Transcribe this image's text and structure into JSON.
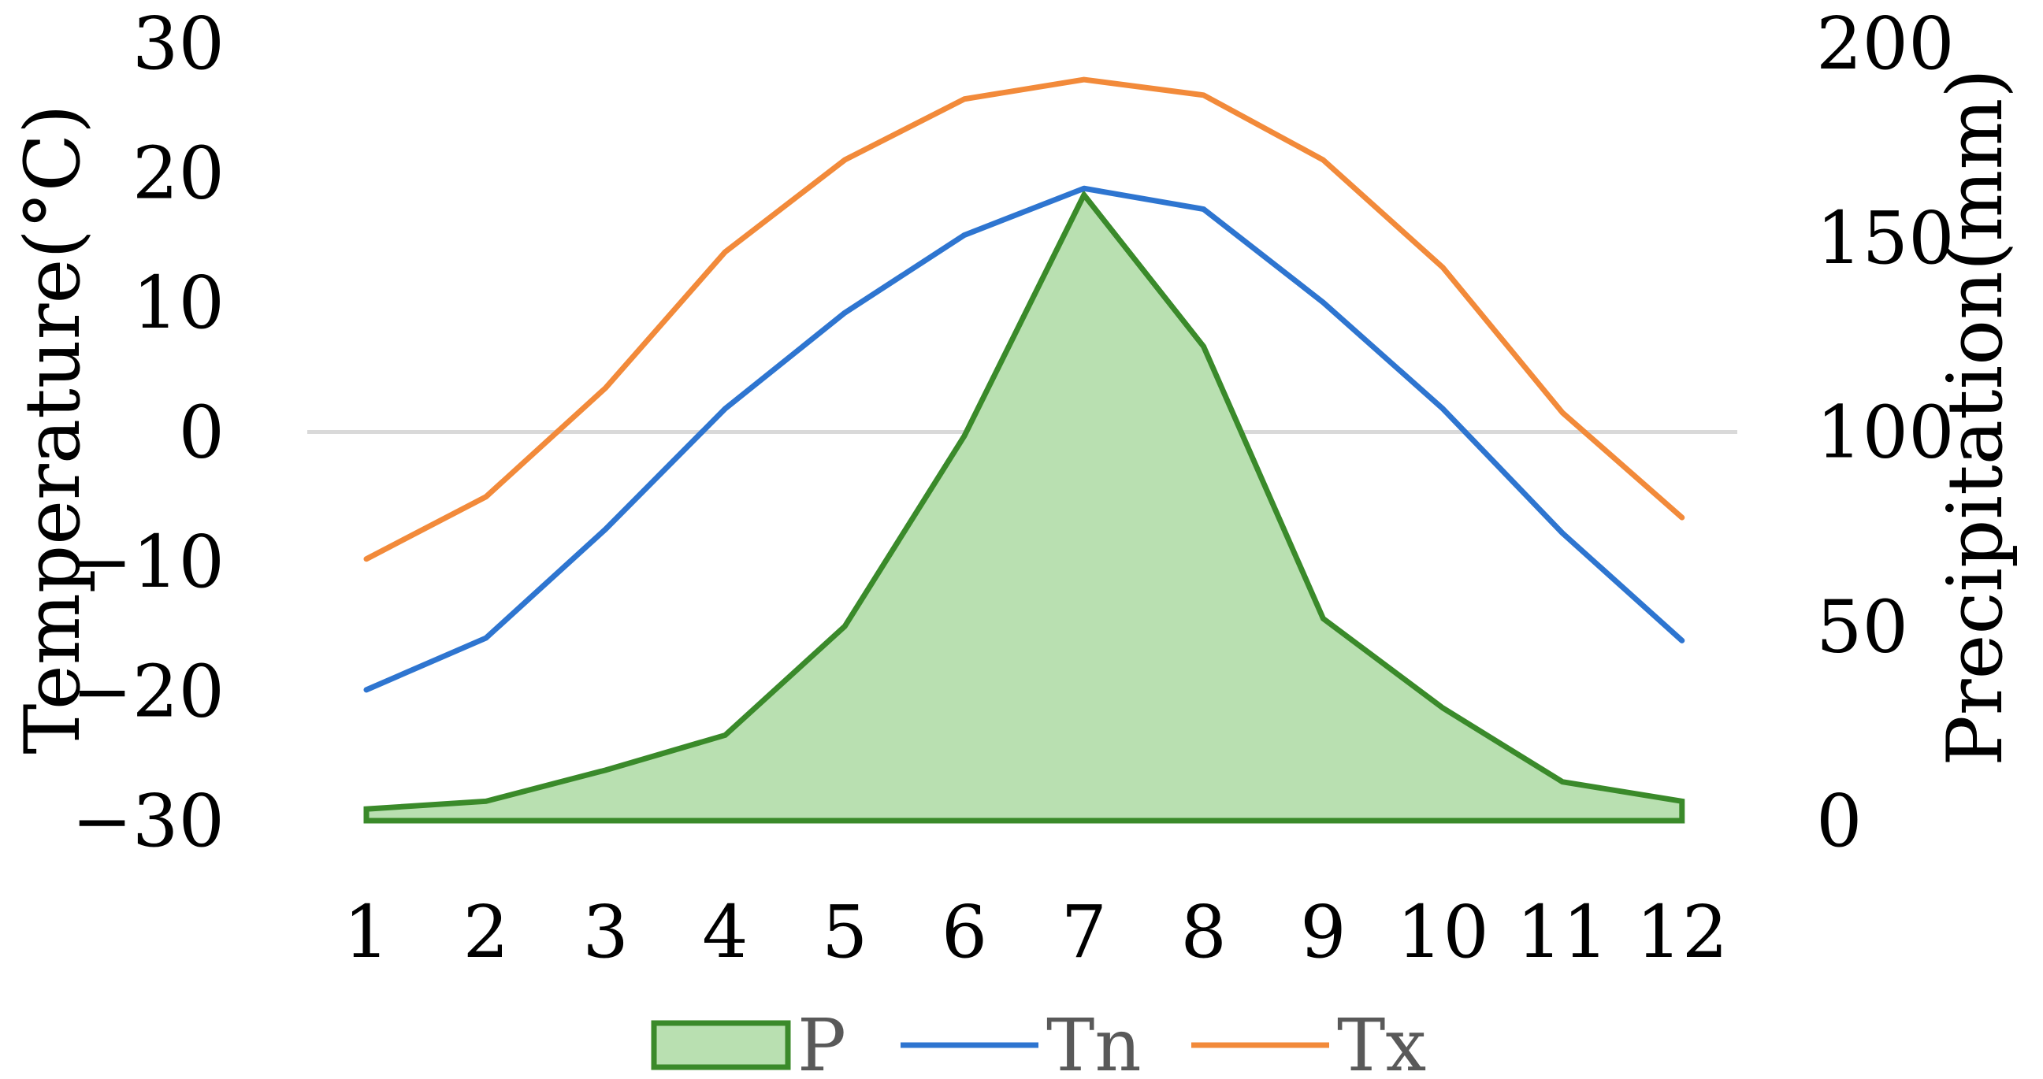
{
  "chart_data": {
    "type": "area",
    "categories": [
      "1",
      "2",
      "3",
      "4",
      "5",
      "6",
      "7",
      "8",
      "9",
      "10",
      "11",
      "12"
    ],
    "series": [
      {
        "name": "P",
        "type": "area",
        "axis": "right",
        "color": "#3a8a2a",
        "fill": "#b9e0b1",
        "values": [
          3,
          5,
          13,
          22,
          50,
          99,
          161,
          122,
          52,
          29,
          10,
          5
        ]
      },
      {
        "name": "Tn",
        "type": "line",
        "axis": "left",
        "color": "#2e75d0",
        "values": [
          -19.9,
          -15.9,
          -7.5,
          1.8,
          9.2,
          15.2,
          18.8,
          17.2,
          10.0,
          1.8,
          -7.8,
          -16.1
        ]
      },
      {
        "name": "Tx",
        "type": "line",
        "axis": "left",
        "color": "#f28a3a",
        "values": [
          -9.8,
          -5.0,
          3.4,
          13.9,
          21.0,
          25.7,
          27.2,
          26.0,
          21.0,
          12.7,
          1.5,
          -6.6
        ]
      }
    ],
    "yleft": {
      "label": "Temperature(°C)",
      "ylim": [
        -30,
        30
      ],
      "ticks": [
        "30",
        "20",
        "10",
        "0",
        "−10",
        "−20",
        "−30"
      ]
    },
    "yright": {
      "label": "Precipitation(mm)",
      "ylim": [
        0,
        200
      ],
      "ticks": [
        "200",
        "150",
        "100",
        "50",
        "0"
      ]
    },
    "zero_line_color": "#d9d9d9",
    "grid": false,
    "legend": {
      "position": "bottom",
      "entries": [
        "P",
        "Tn",
        "Tx"
      ]
    }
  }
}
